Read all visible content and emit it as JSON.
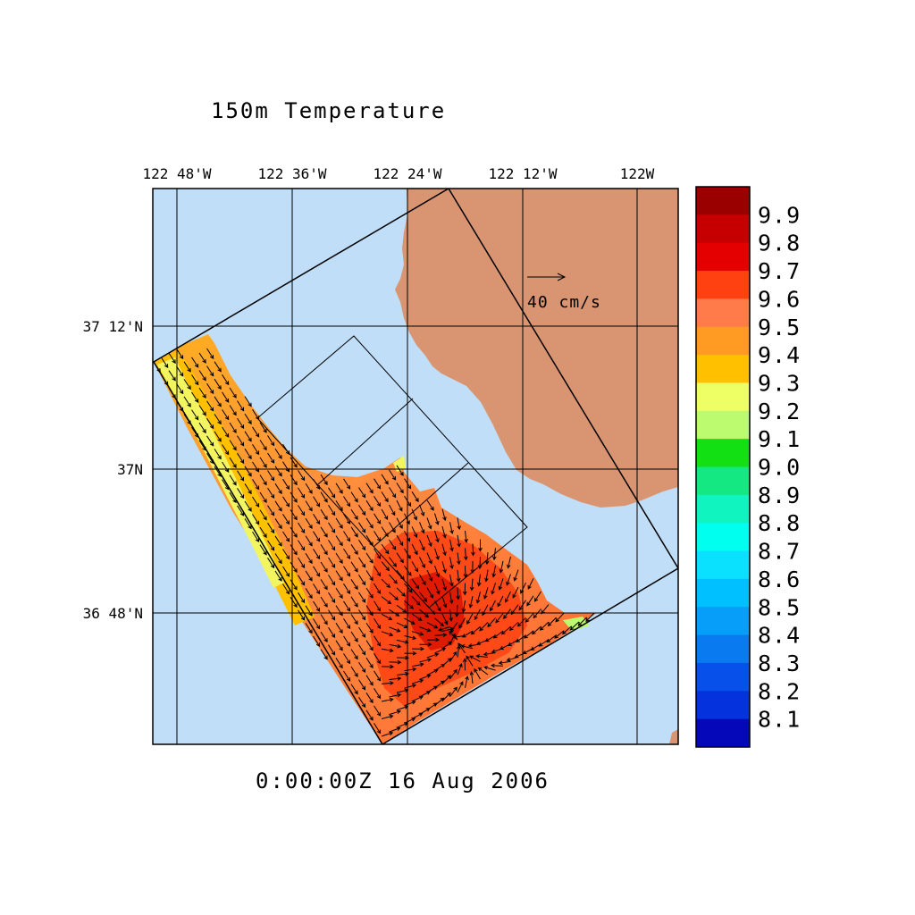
{
  "title": "150m Temperature",
  "timestamp": "0:00:00Z  16 Aug 2006",
  "colors": {
    "ocean": "#c1def8",
    "land": "#d99571",
    "frame": "#000000"
  },
  "map": {
    "lon_range": [
      -122.866,
      -122.067
    ],
    "lat_range": [
      36.69,
      37.46
    ],
    "lon_ticks": [
      {
        "value": -122.8,
        "label": "122 48'W"
      },
      {
        "value": -122.6,
        "label": "122 36'W"
      },
      {
        "value": -122.4,
        "label": "122 24'W"
      },
      {
        "value": -122.2,
        "label": "122 12'W"
      },
      {
        "value": -122.0,
        "label": "122W"
      }
    ],
    "lat_ticks": [
      {
        "value": 37.2,
        "label": "37 12'N"
      },
      {
        "value": 37.0,
        "label": "37N"
      },
      {
        "value": 36.8,
        "label": "36 48'N"
      }
    ],
    "scale_vector": {
      "label": "40 cm/s",
      "speed_cm_s": 40
    },
    "field_variable": "temperature",
    "depth": "150m",
    "dominant_flow": "southeastward along the offshore domain, converging toward the bay mouth in the southeast",
    "features": [
      "Warm core (~9.7-9.8) near bay center south of 37N",
      "Cooler band (~9.2-9.3) along the western offshore edge",
      "Small cool patch (~9.1) at the southeast bay corner"
    ]
  },
  "colorbar": {
    "levels": [
      {
        "label": "9.9",
        "color": "#9a0000"
      },
      {
        "label": "9.8",
        "color": "#c60000"
      },
      {
        "label": "9.7",
        "color": "#e50000"
      },
      {
        "label": "9.6",
        "color": "#ff4010"
      },
      {
        "label": "9.5",
        "color": "#ff7b4a"
      },
      {
        "label": "9.4",
        "color": "#ff9a22"
      },
      {
        "label": "9.3",
        "color": "#ffc000"
      },
      {
        "label": "9.2",
        "color": "#eeff66"
      },
      {
        "label": "9.1",
        "color": "#bcfa70"
      },
      {
        "label": "9.0",
        "color": "#12e012"
      },
      {
        "label": "8.9",
        "color": "#14e882"
      },
      {
        "label": "8.8",
        "color": "#10f4c0"
      },
      {
        "label": "8.7",
        "color": "#00ffee"
      },
      {
        "label": "8.6",
        "color": "#0ae0ff"
      },
      {
        "label": "8.5",
        "color": "#00c0ff"
      },
      {
        "label": "8.4",
        "color": "#069ef8"
      },
      {
        "label": "8.3",
        "color": "#0a7af0"
      },
      {
        "label": "8.2",
        "color": "#0850ea"
      },
      {
        "label": "8.1",
        "color": "#0432dc"
      },
      {
        "label": "",
        "color": "#0408b8"
      }
    ]
  }
}
